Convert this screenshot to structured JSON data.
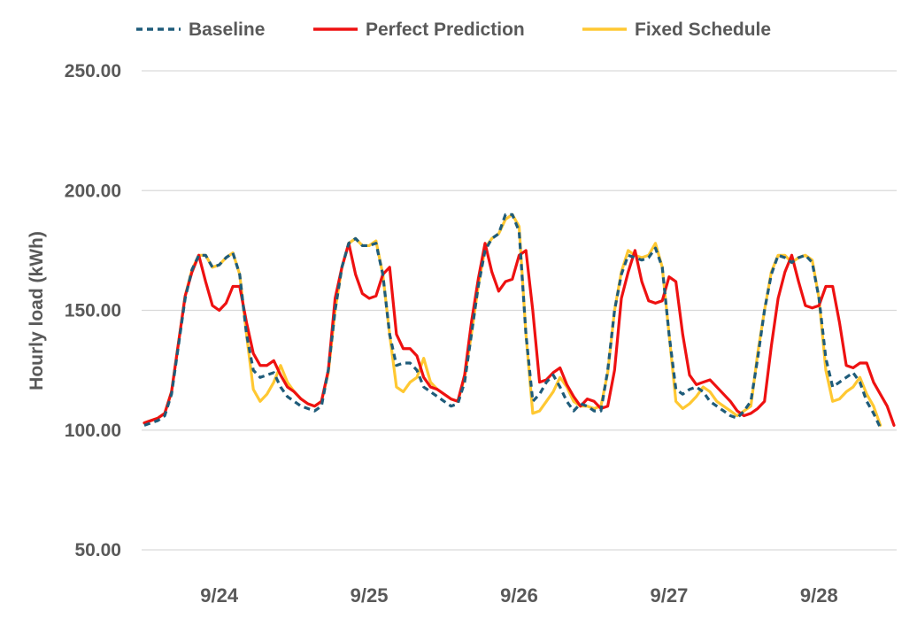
{
  "chart_data": {
    "type": "line",
    "title": "",
    "xlabel": "",
    "ylabel": "Hourly load (kWh)",
    "ylim": [
      50,
      250
    ],
    "yticks": [
      "50.00",
      "100.00",
      "150.00",
      "200.00",
      "250.00"
    ],
    "x_ticks": [
      "9/24",
      "9/25",
      "9/26",
      "9/27",
      "9/28"
    ],
    "grid": "horizontal",
    "legend_position": "top",
    "series": [
      {
        "name": "Baseline",
        "color": "#1f5c7a",
        "dash": "dashed",
        "values": [
          102,
          103,
          104,
          106,
          115,
          135,
          155,
          167,
          173,
          173,
          168,
          169,
          172,
          174,
          165,
          140,
          125,
          122,
          123,
          124,
          118,
          114,
          112,
          110,
          109,
          108,
          110,
          125,
          150,
          168,
          178,
          180,
          177,
          177,
          178,
          165,
          140,
          127,
          128,
          128,
          125,
          118,
          116,
          114,
          112,
          110,
          111,
          120,
          140,
          160,
          175,
          180,
          182,
          190,
          190,
          183,
          140,
          112,
          115,
          120,
          123,
          118,
          112,
          108,
          111,
          110,
          108,
          108,
          125,
          150,
          165,
          173,
          172,
          171,
          172,
          176,
          168,
          140,
          117,
          115,
          117,
          118,
          116,
          112,
          110,
          108,
          106,
          105,
          108,
          112,
          130,
          150,
          165,
          173,
          172,
          170,
          172,
          173,
          170,
          155,
          130,
          118,
          120,
          122,
          124,
          120,
          112,
          107,
          101
        ],
        "x_start": 0
      },
      {
        "name": "Perfect Prediction",
        "color": "#ee1111",
        "dash": "solid",
        "values": [
          103,
          104,
          105,
          107,
          116,
          136,
          156,
          166,
          173,
          162,
          152,
          150,
          153,
          160,
          160,
          145,
          132,
          127,
          127,
          129,
          123,
          118,
          116,
          113,
          111,
          110,
          112,
          125,
          155,
          168,
          178,
          165,
          157,
          155,
          156,
          165,
          168,
          140,
          134,
          134,
          131,
          122,
          118,
          117,
          115,
          113,
          112,
          123,
          145,
          163,
          178,
          166,
          158,
          162,
          163,
          173,
          175,
          150,
          120,
          121,
          124,
          126,
          119,
          114,
          110,
          113,
          112,
          109,
          110,
          125,
          155,
          166,
          175,
          162,
          154,
          153,
          154,
          164,
          162,
          140,
          123,
          119,
          120,
          121,
          118,
          115,
          112,
          108,
          106,
          107,
          109,
          112,
          135,
          155,
          166,
          173,
          162,
          152,
          151,
          152,
          160,
          160,
          145,
          127,
          126,
          128,
          128,
          120,
          115,
          110,
          102
        ],
        "x_start": 0
      },
      {
        "name": "Fixed Schedule",
        "color": "#ffc832",
        "dash": "solid",
        "values": [
          103,
          104,
          105,
          107,
          116,
          136,
          156,
          167,
          173,
          173,
          168,
          169,
          172,
          174,
          165,
          140,
          117,
          112,
          115,
          120,
          127,
          120,
          116,
          113,
          111,
          110,
          112,
          124,
          150,
          168,
          178,
          180,
          177,
          177,
          179,
          165,
          140,
          118,
          116,
          120,
          122,
          130,
          120,
          117,
          115,
          113,
          112,
          122,
          140,
          160,
          176,
          180,
          182,
          188,
          190,
          185,
          140,
          107,
          108,
          112,
          116,
          122,
          118,
          112,
          110,
          110,
          109,
          110,
          124,
          150,
          166,
          175,
          173,
          172,
          173,
          178,
          168,
          140,
          112,
          109,
          111,
          114,
          118,
          116,
          112,
          110,
          108,
          106,
          108,
          110,
          132,
          150,
          166,
          173,
          173,
          170,
          172,
          173,
          171,
          155,
          125,
          112,
          113,
          116,
          118,
          122,
          115,
          110,
          102
        ],
        "x_start": 0
      }
    ]
  }
}
